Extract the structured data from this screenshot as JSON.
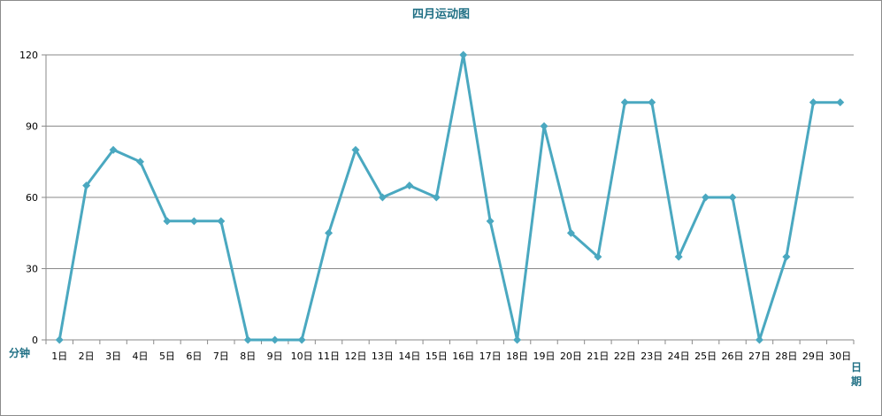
{
  "chart_data": {
    "type": "line",
    "title": "四月运动图",
    "xlabel": "日期",
    "ylabel": "分钟",
    "ylim": [
      0,
      120
    ],
    "yticks": [
      0,
      30,
      60,
      90,
      120
    ],
    "grid": true,
    "categories": [
      "1日",
      "2日",
      "3日",
      "4日",
      "5日",
      "6日",
      "7日",
      "8日",
      "9日",
      "10日",
      "11日",
      "12日",
      "13日",
      "14日",
      "15日",
      "16日",
      "17日",
      "18日",
      "19日",
      "20日",
      "21日",
      "22日",
      "23日",
      "24日",
      "25日",
      "26日",
      "27日",
      "28日",
      "29日",
      "30日"
    ],
    "series": [
      {
        "color": "#4aa8c0",
        "values": [
          0,
          65,
          80,
          75,
          50,
          50,
          50,
          0,
          0,
          0,
          45,
          80,
          60,
          65,
          60,
          120,
          50,
          0,
          90,
          45,
          35,
          100,
          100,
          35,
          60,
          60,
          0,
          35,
          100,
          100
        ]
      }
    ]
  }
}
